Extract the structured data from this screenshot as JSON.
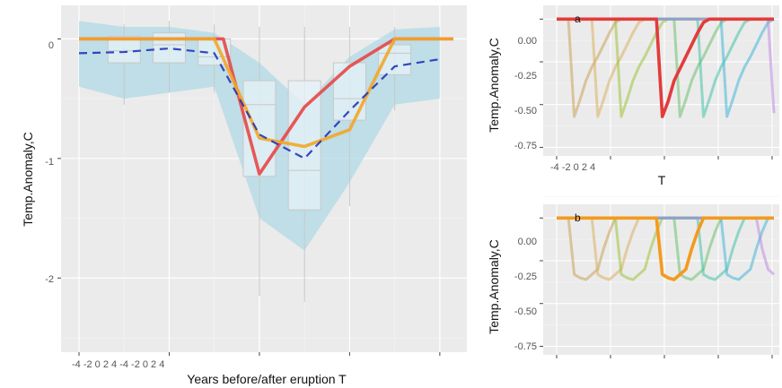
{
  "chart_data": [
    {
      "id": "main",
      "type": "line",
      "xlabel": "Years before/after eruption T",
      "ylabel": "Temp.Anomaly,C",
      "x_tick_labels_text": "-4 -2 0 2 4 -4 -2 0 2 4",
      "y_tick_labels": [
        "0",
        "-1",
        "-2"
      ],
      "xlim": [
        0,
        8.6
      ],
      "ylim": [
        -2.62,
        0.28
      ],
      "grid": true,
      "band": {
        "x": [
          0,
          1,
          2,
          3,
          4,
          5,
          6,
          7,
          8
        ],
        "upper": [
          0.15,
          0.1,
          0.1,
          0.05,
          -0.2,
          -0.55,
          -0.15,
          0.08,
          0.1
        ],
        "lower": [
          -0.4,
          -0.5,
          -0.45,
          -0.4,
          -1.5,
          -1.77,
          -1.2,
          -0.55,
          -0.5
        ]
      },
      "boxes": [
        {
          "x": 1,
          "q1": -0.2,
          "median": -0.1,
          "q3": 0.02,
          "lo": -0.55,
          "hi": 0.12
        },
        {
          "x": 2,
          "q1": -0.2,
          "median": -0.05,
          "q3": 0.05,
          "lo": -0.45,
          "hi": 0.15
        },
        {
          "x": 3,
          "q1": -0.22,
          "median": -0.15,
          "q3": 0.0,
          "lo": -0.45,
          "hi": 0.12
        },
        {
          "x": 4,
          "q1": -1.15,
          "median": -0.55,
          "q3": -0.35,
          "lo": -2.15,
          "hi": 0.1
        },
        {
          "x": 5,
          "q1": -1.43,
          "median": -1.1,
          "q3": -0.35,
          "lo": -2.2,
          "hi": 0.1
        },
        {
          "x": 6,
          "q1": -0.68,
          "median": -0.5,
          "q3": -0.2,
          "lo": -1.4,
          "hi": 0.1
        },
        {
          "x": 7,
          "q1": -0.3,
          "median": -0.12,
          "q3": -0.05,
          "lo": -0.6,
          "hi": 0.1
        }
      ],
      "series": [
        {
          "color": "#e84646",
          "x": [
            0,
            3.2,
            4,
            5,
            6,
            7,
            8.3
          ],
          "values": [
            0,
            0,
            -1.13,
            -0.57,
            -0.23,
            0,
            0
          ]
        },
        {
          "color": "#f2a628",
          "x": [
            0,
            3.0,
            4,
            5,
            6,
            7,
            8.3
          ],
          "values": [
            0,
            0,
            -0.83,
            -0.9,
            -0.76,
            0,
            0
          ]
        },
        {
          "color": "#2233bb",
          "dashed": true,
          "x": [
            0,
            1,
            2,
            3,
            4,
            5,
            6,
            7,
            8
          ],
          "values": [
            -0.12,
            -0.11,
            -0.08,
            -0.12,
            -0.8,
            -1.0,
            -0.6,
            -0.23,
            -0.17
          ]
        }
      ]
    },
    {
      "id": "a",
      "type": "line",
      "panel_label": "a",
      "xlabel": "T",
      "ylabel": "Temp.Anomaly,C",
      "x_tick_labels_text": "-4 -2 0 2 4",
      "y_tick_labels": [
        "0.00",
        "-0.25",
        "-0.50",
        "-0.75"
      ],
      "xlim": [
        0,
        8.6
      ],
      "ylim": [
        -0.8,
        0.08
      ],
      "highlight": "#e33b3b",
      "highlight_values": [
        0,
        0,
        0,
        0,
        0,
        0,
        0,
        0,
        0,
        0,
        0,
        0,
        0,
        0,
        0,
        0,
        0,
        0,
        -0.57,
        -0.48,
        -0.36,
        -0.29,
        -0.22,
        -0.15,
        -0.08,
        -0.02,
        0,
        0,
        0,
        0,
        0,
        0,
        0,
        0,
        0,
        0,
        0,
        0
      ],
      "series": [
        {
          "color": "#c8a25a",
          "values": [
            0,
            0,
            0,
            -0.57,
            -0.47,
            -0.36,
            -0.28,
            -0.22,
            -0.15,
            -0.08,
            -0.02,
            0,
            0,
            0,
            0,
            0,
            0,
            0,
            0,
            0,
            0,
            0,
            0,
            0,
            0,
            0,
            0,
            0,
            0,
            0,
            0,
            0,
            0,
            0,
            0,
            0,
            0,
            0
          ]
        },
        {
          "color": "#d8b060",
          "values": [
            0,
            0,
            0,
            0,
            0,
            0,
            0,
            -0.57,
            -0.47,
            -0.36,
            -0.28,
            -0.22,
            -0.15,
            -0.08,
            -0.02,
            0,
            0,
            0,
            0,
            0,
            0,
            0,
            0,
            0,
            0,
            0,
            0,
            0,
            0,
            0,
            0,
            0,
            0,
            0,
            0,
            0,
            0,
            0
          ]
        },
        {
          "color": "#9fc23a",
          "values": [
            0,
            0,
            0,
            0,
            0,
            0,
            0,
            0,
            0,
            0,
            0,
            -0.57,
            -0.47,
            -0.36,
            -0.28,
            -0.22,
            -0.15,
            -0.08,
            -0.02,
            0,
            0,
            0,
            0,
            0,
            0,
            0,
            0,
            0,
            0,
            0,
            0,
            0,
            0,
            0,
            0,
            0,
            0,
            0
          ]
        },
        {
          "color": "#6dbf6d",
          "values": [
            0,
            0,
            0,
            0,
            0,
            0,
            0,
            0,
            0,
            0,
            0,
            0,
            0,
            0,
            0,
            0,
            0,
            0,
            0,
            0,
            0,
            -0.57,
            -0.47,
            -0.36,
            -0.28,
            -0.22,
            -0.15,
            -0.08,
            -0.02,
            0,
            0,
            0,
            0,
            0,
            0,
            0,
            0,
            0
          ]
        },
        {
          "color": "#43c2a8",
          "values": [
            0,
            0,
            0,
            0,
            0,
            0,
            0,
            0,
            0,
            0,
            0,
            0,
            0,
            0,
            0,
            0,
            0,
            0,
            0,
            0,
            0,
            0,
            0,
            0,
            0,
            -0.57,
            -0.47,
            -0.36,
            -0.28,
            -0.22,
            -0.15,
            -0.08,
            -0.02,
            0,
            0,
            0,
            0,
            0
          ]
        },
        {
          "color": "#46b5d8",
          "values": [
            0,
            0,
            0,
            0,
            0,
            0,
            0,
            0,
            0,
            0,
            0,
            0,
            0,
            0,
            0,
            0,
            0,
            0,
            0,
            0,
            0,
            0,
            0,
            0,
            0,
            0,
            0,
            0,
            0,
            -0.57,
            -0.47,
            -0.36,
            -0.28,
            -0.22,
            -0.15,
            -0.08,
            -0.02,
            0
          ]
        },
        {
          "color": "#c08ae0",
          "values": [
            0,
            0,
            0,
            0,
            0,
            0,
            0,
            0,
            0,
            0,
            0,
            0,
            0,
            0,
            0,
            0,
            0,
            0,
            0,
            0,
            0,
            0,
            0,
            0,
            0,
            0,
            0,
            0,
            0,
            0,
            0,
            0,
            0,
            0,
            0,
            0,
            0,
            -0.55
          ]
        }
      ]
    },
    {
      "id": "b",
      "type": "line",
      "panel_label": "b",
      "ylabel": "Temp.Anomaly,C",
      "y_tick_labels": [
        "0.00",
        "-0.25",
        "-0.50",
        "-0.75"
      ],
      "xlim": [
        0,
        8.6
      ],
      "ylim": [
        -0.8,
        0.08
      ],
      "highlight": "#f39a1e",
      "highlight_values": [
        0,
        0,
        0,
        0,
        0,
        0,
        0,
        0,
        0,
        0,
        0,
        0,
        0,
        0,
        0,
        0,
        0,
        0,
        -0.33,
        -0.35,
        -0.36,
        -0.33,
        -0.3,
        -0.18,
        -0.08,
        0,
        0,
        0,
        0,
        0,
        0,
        0,
        0,
        0,
        0,
        0,
        0,
        0
      ],
      "series": [
        {
          "color": "#c8a25a",
          "values": [
            0,
            0,
            0,
            -0.33,
            -0.35,
            -0.36,
            -0.33,
            -0.3,
            -0.18,
            -0.08,
            0,
            0,
            0,
            0,
            0,
            0,
            0,
            0,
            0,
            0,
            0,
            0,
            0,
            0,
            0,
            0,
            0,
            0,
            0,
            0,
            0,
            0,
            0,
            0,
            0,
            0,
            0,
            0
          ]
        },
        {
          "color": "#d8b060",
          "values": [
            0,
            0,
            0,
            0,
            0,
            0,
            0,
            -0.33,
            -0.35,
            -0.36,
            -0.33,
            -0.3,
            -0.18,
            -0.08,
            0,
            0,
            0,
            0,
            0,
            0,
            0,
            0,
            0,
            0,
            0,
            0,
            0,
            0,
            0,
            0,
            0,
            0,
            0,
            0,
            0,
            0,
            0,
            0
          ]
        },
        {
          "color": "#9fc23a",
          "values": [
            0,
            0,
            0,
            0,
            0,
            0,
            0,
            0,
            0,
            0,
            0,
            -0.33,
            -0.35,
            -0.36,
            -0.33,
            -0.3,
            -0.18,
            -0.08,
            0,
            0,
            0,
            0,
            0,
            0,
            0,
            0,
            0,
            0,
            0,
            0,
            0,
            0,
            0,
            0,
            0,
            0,
            0,
            0
          ]
        },
        {
          "color": "#6dbf6d",
          "values": [
            0,
            0,
            0,
            0,
            0,
            0,
            0,
            0,
            0,
            0,
            0,
            0,
            0,
            0,
            0,
            0,
            0,
            0,
            0,
            0,
            0,
            -0.33,
            -0.35,
            -0.36,
            -0.33,
            -0.3,
            -0.18,
            -0.08,
            0,
            0,
            0,
            0,
            0,
            0,
            0,
            0,
            0,
            0
          ]
        },
        {
          "color": "#43c2a8",
          "values": [
            0,
            0,
            0,
            0,
            0,
            0,
            0,
            0,
            0,
            0,
            0,
            0,
            0,
            0,
            0,
            0,
            0,
            0,
            0,
            0,
            0,
            0,
            0,
            0,
            0,
            -0.33,
            -0.35,
            -0.36,
            -0.33,
            -0.3,
            -0.18,
            -0.08,
            0,
            0,
            0,
            0,
            0,
            0
          ]
        },
        {
          "color": "#46b5d8",
          "values": [
            0,
            0,
            0,
            0,
            0,
            0,
            0,
            0,
            0,
            0,
            0,
            0,
            0,
            0,
            0,
            0,
            0,
            0,
            0,
            0,
            0,
            0,
            0,
            0,
            0,
            0,
            0,
            0,
            0,
            -0.33,
            -0.35,
            -0.36,
            -0.33,
            -0.3,
            -0.18,
            -0.08,
            0,
            0
          ]
        },
        {
          "color": "#c08ae0",
          "values": [
            0,
            0,
            0,
            0,
            0,
            0,
            0,
            0,
            0,
            0,
            0,
            0,
            0,
            0,
            0,
            0,
            0,
            0,
            0,
            0,
            0,
            0,
            0,
            0,
            0,
            0,
            0,
            0,
            0,
            0,
            0,
            0,
            0,
            0,
            0,
            -0.18,
            -0.3,
            -0.33
          ]
        }
      ]
    }
  ]
}
